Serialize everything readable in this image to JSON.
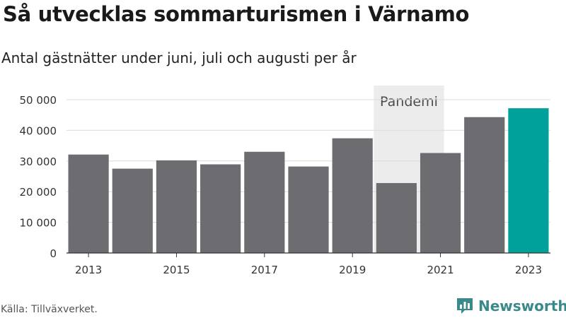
{
  "header": {
    "title": "Så utvecklas sommarturismen i Värnamo",
    "subtitle": "Antal gästnätter under juni, juli och augusti per år"
  },
  "footer": {
    "source": "Källa: Tillväxverket.",
    "brand": "Newsworthy",
    "brand_icon": "newsworthy-logo-icon"
  },
  "colors": {
    "bar": "#6d6c71",
    "highlight": "#00a19a",
    "pandemic_band": "#ececec",
    "grid": "#dcdcdc",
    "axis_text": "#333333"
  },
  "chart_data": {
    "type": "bar",
    "title": "Så utvecklas sommarturismen i Värnamo",
    "subtitle": "Antal gästnätter under juni, juli och augusti per år",
    "categories": [
      "2013",
      "2014",
      "2015",
      "2016",
      "2017",
      "2018",
      "2019",
      "2020",
      "2021",
      "2022",
      "2023"
    ],
    "values": [
      32100,
      27500,
      30200,
      28900,
      33000,
      28200,
      37400,
      22800,
      32600,
      44300,
      47200
    ],
    "highlight_category": "2023",
    "ylim": [
      0,
      50000
    ],
    "yticks": [
      0,
      10000,
      20000,
      30000,
      40000,
      50000
    ],
    "ytick_labels": [
      "0",
      "10 000",
      "20 000",
      "30 000",
      "40 000",
      "50 000"
    ],
    "xtick_labels": [
      "2013",
      "",
      "2015",
      "",
      "2017",
      "",
      "2019",
      "",
      "2021",
      "",
      "2023"
    ],
    "annotation": {
      "label": "Pandemi",
      "from_category": "2020",
      "to_category": "2021"
    },
    "grid": true,
    "xlabel": "",
    "ylabel": ""
  }
}
